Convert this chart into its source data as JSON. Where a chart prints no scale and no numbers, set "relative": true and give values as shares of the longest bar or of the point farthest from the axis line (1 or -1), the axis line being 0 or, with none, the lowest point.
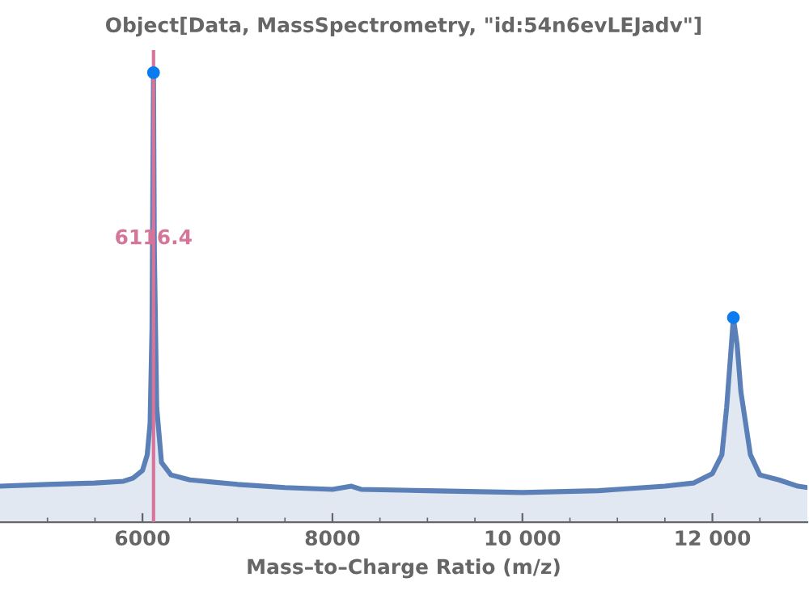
{
  "chart_data": {
    "type": "area",
    "title": "Object[Data, MassSpectrometry, \"id:54n6evLEJadv\"]",
    "xlabel": "Mass–to–Charge Ratio (m/z)",
    "relative": true,
    "grid": false,
    "tick_labels": "x",
    "legend": false,
    "xlim": [
      4500,
      13000
    ],
    "xticks": [
      {
        "value": 5000,
        "label": null
      },
      {
        "value": 5500,
        "label": null
      },
      6000,
      {
        "value": 6500,
        "label": null
      },
      {
        "value": 7000,
        "label": null
      },
      {
        "value": 7500,
        "label": null
      },
      8000,
      {
        "value": 8500,
        "label": null
      },
      {
        "value": 9000,
        "label": null
      },
      {
        "value": 9500,
        "label": null
      },
      {
        "value": 10000,
        "label": "10 000"
      },
      {
        "value": 10500,
        "label": null
      },
      {
        "value": 11000,
        "label": null
      },
      {
        "value": 11500,
        "label": null
      },
      {
        "value": 12000,
        "label": "12 000"
      },
      {
        "value": 12500,
        "label": null
      }
    ],
    "series": [
      {
        "color": "#5b7fb7",
        "x": [
          4500,
          5000,
          5500,
          5800,
          5900,
          6000,
          6050,
          6080,
          6100,
          6116,
          6125,
          6150,
          6200,
          6300,
          6500,
          7000,
          7500,
          8000,
          8200,
          8300,
          9000,
          10000,
          10800,
          11000,
          11500,
          11800,
          12000,
          12100,
          12150,
          12200,
          12221,
          12260,
          12300,
          12400,
          12500,
          12700,
          12900,
          13000
        ],
        "values": [
          0.08,
          0.084,
          0.087,
          0.091,
          0.098,
          0.115,
          0.15,
          0.22,
          0.43,
          1,
          0.605,
          0.255,
          0.133,
          0.105,
          0.094,
          0.084,
          0.077,
          0.073,
          0.08,
          0.073,
          0.07,
          0.066,
          0.07,
          0.073,
          0.08,
          0.087,
          0.108,
          0.15,
          0.255,
          0.395,
          0.455,
          0.395,
          0.29,
          0.15,
          0.105,
          0.094,
          0.08,
          0.077
        ]
      },
      {
        "type": "scatter",
        "color": "#0a7cf0",
        "marker": "circle",
        "x": [
          6116,
          12221
        ],
        "values": [
          1,
          0.455
        ]
      }
    ],
    "ref_lines": [
      {
        "axis": "x",
        "value": 6116.4,
        "label": "6116.4",
        "color": "#d6759a",
        "line_style": "solid"
      }
    ]
  }
}
